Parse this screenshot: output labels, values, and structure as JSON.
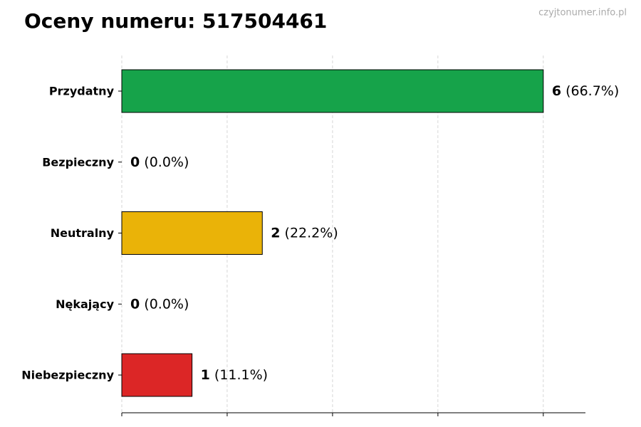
{
  "chart_data": {
    "type": "barh",
    "title": "Oceny numeru: 517504461",
    "watermark": "czyjtonumer.info.pl",
    "categories": [
      "Przydatny",
      "Bezpieczny",
      "Neutralny",
      "Nękający",
      "Niebezpieczny"
    ],
    "values": [
      6,
      0,
      2,
      0,
      1
    ],
    "percent_labels": [
      "(66.7%)",
      "(0.0%)",
      "(22.2%)",
      "(0.0%)",
      "(11.1%)"
    ],
    "colors": [
      "#16a34a",
      "#22c55e",
      "#eab308",
      "#f97316",
      "#dc2626"
    ],
    "xlim": [
      0,
      6.6
    ],
    "xticks": [
      0,
      1.5,
      3,
      4.5,
      6
    ],
    "xtick_labels": false,
    "grid": true
  }
}
